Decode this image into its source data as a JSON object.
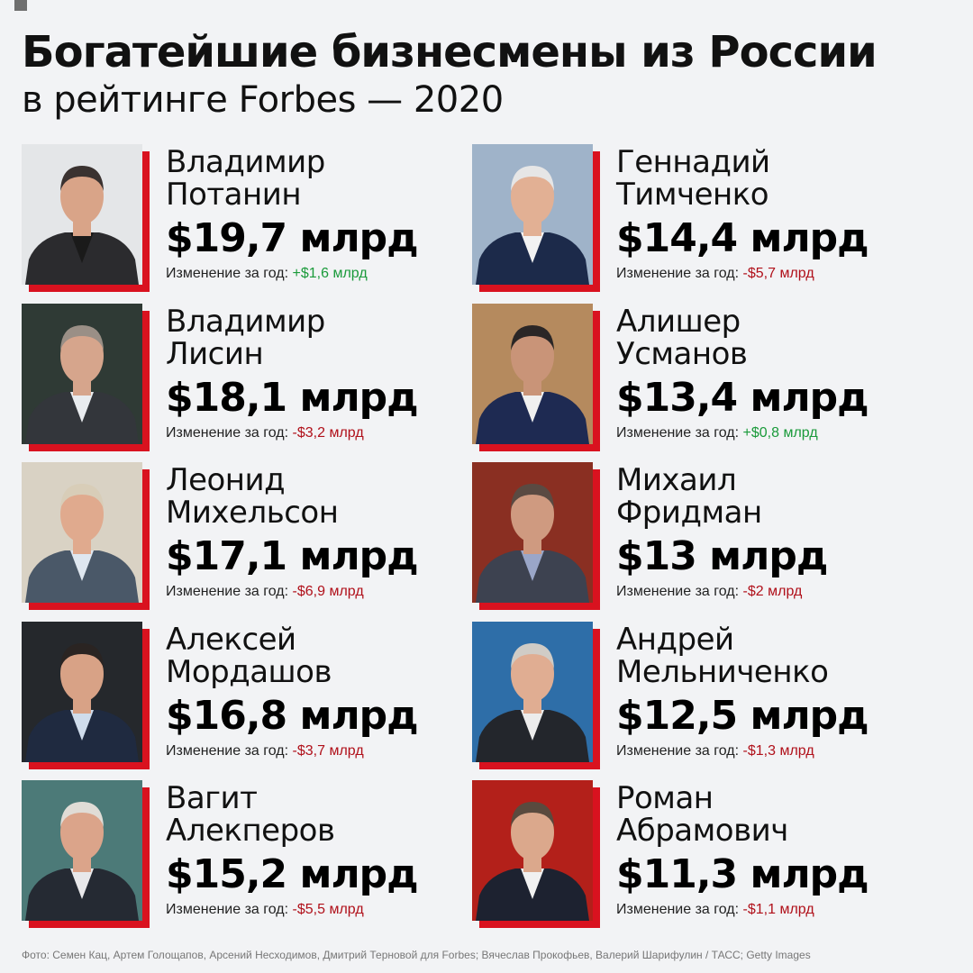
{
  "title": "Богатейшие бизнесмены из России",
  "subtitle": "в рейтинге Forbes — 2020",
  "change_label": "Изменение за год:",
  "people": [
    {
      "first": "Владимир",
      "last": "Потанин",
      "worth": "$19,7 млрд",
      "change": "+$1,6 млрд",
      "trend": "pos",
      "bg": "#e4e6e8",
      "skin": "#d9a488",
      "hair": "#3a3230",
      "suit": "#2b2b2e",
      "shirt": "#1a1a1a"
    },
    {
      "first": "Геннадий",
      "last": "Тимченко",
      "worth": "$14,4 млрд",
      "change": "-$5,7 млрд",
      "trend": "neg",
      "bg": "#9fb3c9",
      "skin": "#e2b094",
      "hair": "#e6e6e6",
      "suit": "#1c2a4a",
      "shirt": "#f2f2f2"
    },
    {
      "first": "Владимир",
      "last": "Лисин",
      "worth": "$18,1 млрд",
      "change": "-$3,2 млрд",
      "trend": "neg",
      "bg": "#2f3a35",
      "skin": "#d6a58c",
      "hair": "#9a8f86",
      "suit": "#33363b",
      "shirt": "#e9ecef"
    },
    {
      "first": "Алишер",
      "last": "Усманов",
      "worth": "$13,4 млрд",
      "change": "+$0,8 млрд",
      "trend": "pos",
      "bg": "#b58a5e",
      "skin": "#c99478",
      "hair": "#2a2626",
      "suit": "#1e2a52",
      "shirt": "#f0f0f0"
    },
    {
      "first": "Леонид",
      "last": "Михельсон",
      "worth": "$17,1 млрд",
      "change": "-$6,9 млрд",
      "trend": "neg",
      "bg": "#d9d2c4",
      "skin": "#e0aa8e",
      "hair": "#d8cdb8",
      "suit": "#4a5868",
      "shirt": "#dfe7f0"
    },
    {
      "first": "Михаил",
      "last": "Фридман",
      "worth": "$13 млрд",
      "change": "-$2 млрд",
      "trend": "neg",
      "bg": "#8a2f22",
      "skin": "#cf9a80",
      "hair": "#5a4a42",
      "suit": "#3d4250",
      "shirt": "#9aa6c8"
    },
    {
      "first": "Алексей",
      "last": "Мордашов",
      "worth": "$16,8 млрд",
      "change": "-$3,7 млрд",
      "trend": "neg",
      "bg": "#25282c",
      "skin": "#d8a286",
      "hair": "#2a2422",
      "suit": "#1f2a40",
      "shirt": "#cfdcec"
    },
    {
      "first": "Андрей",
      "last": "Мельниченко",
      "worth": "$12,5 млрд",
      "change": "-$1,3 млрд",
      "trend": "neg",
      "bg": "#2e6ea8",
      "skin": "#e0ad92",
      "hair": "#d0ccc6",
      "suit": "#23262c",
      "shirt": "#ececec"
    },
    {
      "first": "Вагит",
      "last": "Алекперов",
      "worth": "$15,2 млрд",
      "change": "-$5,5 млрд",
      "trend": "neg",
      "bg": "#4c7a78",
      "skin": "#dba48a",
      "hair": "#e0dcd6",
      "suit": "#252a33",
      "shirt": "#e8e8ea"
    },
    {
      "first": "Роман",
      "last": "Абрамович",
      "worth": "$11,3 млрд",
      "change": "-$1,1 млрд",
      "trend": "neg",
      "bg": "#b3201a",
      "skin": "#dba88c",
      "hair": "#5a4a3e",
      "suit": "#1d2230",
      "shirt": "#f1f1f1"
    }
  ],
  "credits": "Фото: Семен Кац, Артем Голощапов, Арсений Несходимов, Дмитрий Терновой для Forbes; Вячеслав Прокофьев, Валерий Шарифулин / ТАСС; Getty Images"
}
